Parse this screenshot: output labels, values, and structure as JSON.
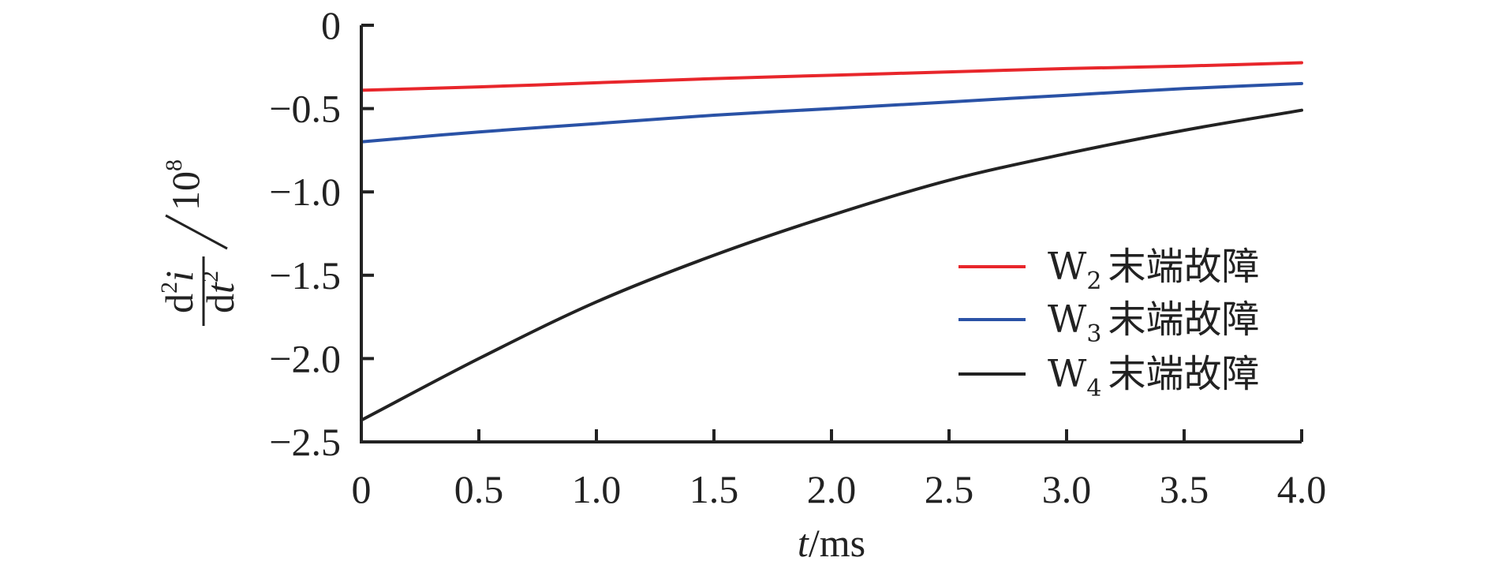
{
  "chart_data": {
    "type": "line",
    "title": "",
    "xlabel": {
      "italic": "t",
      "rest": "/ms"
    },
    "ylabel": {
      "numerator": {
        "d": "d",
        "sup": "2",
        "var": "i"
      },
      "denominator": {
        "d": "d",
        "var": "t",
        "sup": "2"
      },
      "scale": "10",
      "scale_exp": "8"
    },
    "xlim": [
      0,
      4.0
    ],
    "ylim": [
      -2.5,
      0
    ],
    "xticks": [
      0,
      0.5,
      1.0,
      1.5,
      2.0,
      2.5,
      3.0,
      3.5,
      4.0
    ],
    "xtick_labels": [
      "0",
      "0.5",
      "1.0",
      "1.5",
      "2.0",
      "2.5",
      "3.0",
      "3.5",
      "4.0"
    ],
    "yticks": [
      0,
      -0.5,
      -1.0,
      -1.5,
      -2.0,
      -2.5
    ],
    "ytick_labels": [
      "0",
      "−0.5",
      "−1.0",
      "−1.5",
      "−2.0",
      "−2.5"
    ],
    "grid": false,
    "legend_position": "right",
    "series": [
      {
        "name": "W2 末端故障",
        "legend": {
          "base": "W",
          "sub": "2",
          "text": "末端故障"
        },
        "color": "#e8262b",
        "x": [
          0,
          0.5,
          1.0,
          1.5,
          2.0,
          2.5,
          3.0,
          3.5,
          4.0
        ],
        "values": [
          -0.39,
          -0.37,
          -0.345,
          -0.32,
          -0.3,
          -0.28,
          -0.26,
          -0.245,
          -0.225
        ]
      },
      {
        "name": "W3 末端故障",
        "legend": {
          "base": "W",
          "sub": "3",
          "text": "末端故障"
        },
        "color": "#2a52a6",
        "x": [
          0,
          0.5,
          1.0,
          1.5,
          2.0,
          2.5,
          3.0,
          3.5,
          4.0
        ],
        "values": [
          -0.7,
          -0.64,
          -0.59,
          -0.54,
          -0.5,
          -0.46,
          -0.42,
          -0.38,
          -0.35
        ]
      },
      {
        "name": "W4 末端故障",
        "legend": {
          "base": "W",
          "sub": "4",
          "text": "末端故障"
        },
        "color": "#222222",
        "x": [
          0,
          0.5,
          1.0,
          1.5,
          2.0,
          2.5,
          3.0,
          3.5,
          4.0
        ],
        "values": [
          -2.37,
          -2.0,
          -1.66,
          -1.38,
          -1.14,
          -0.93,
          -0.77,
          -0.63,
          -0.51
        ]
      }
    ]
  }
}
